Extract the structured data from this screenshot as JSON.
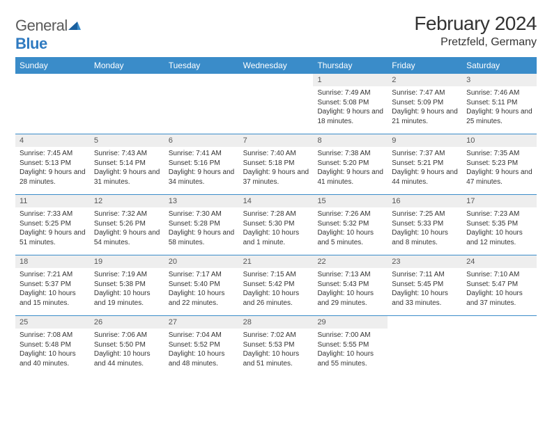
{
  "brand": {
    "part1": "General",
    "part2": "Blue"
  },
  "title": "February 2024",
  "location": "Pretzfeld, Germany",
  "colors": {
    "header_bg": "#3a8cc9",
    "header_text": "#ffffff",
    "daynum_bg": "#eeeeee",
    "border": "#3a8cc9",
    "text": "#333333",
    "logo_gray": "#5a5a5a",
    "logo_blue": "#2f7ac0"
  },
  "day_names": [
    "Sunday",
    "Monday",
    "Tuesday",
    "Wednesday",
    "Thursday",
    "Friday",
    "Saturday"
  ],
  "weeks": [
    [
      {
        "n": "",
        "sr": "",
        "ss": "",
        "dl": ""
      },
      {
        "n": "",
        "sr": "",
        "ss": "",
        "dl": ""
      },
      {
        "n": "",
        "sr": "",
        "ss": "",
        "dl": ""
      },
      {
        "n": "",
        "sr": "",
        "ss": "",
        "dl": ""
      },
      {
        "n": "1",
        "sr": "Sunrise: 7:49 AM",
        "ss": "Sunset: 5:08 PM",
        "dl": "Daylight: 9 hours and 18 minutes."
      },
      {
        "n": "2",
        "sr": "Sunrise: 7:47 AM",
        "ss": "Sunset: 5:09 PM",
        "dl": "Daylight: 9 hours and 21 minutes."
      },
      {
        "n": "3",
        "sr": "Sunrise: 7:46 AM",
        "ss": "Sunset: 5:11 PM",
        "dl": "Daylight: 9 hours and 25 minutes."
      }
    ],
    [
      {
        "n": "4",
        "sr": "Sunrise: 7:45 AM",
        "ss": "Sunset: 5:13 PM",
        "dl": "Daylight: 9 hours and 28 minutes."
      },
      {
        "n": "5",
        "sr": "Sunrise: 7:43 AM",
        "ss": "Sunset: 5:14 PM",
        "dl": "Daylight: 9 hours and 31 minutes."
      },
      {
        "n": "6",
        "sr": "Sunrise: 7:41 AM",
        "ss": "Sunset: 5:16 PM",
        "dl": "Daylight: 9 hours and 34 minutes."
      },
      {
        "n": "7",
        "sr": "Sunrise: 7:40 AM",
        "ss": "Sunset: 5:18 PM",
        "dl": "Daylight: 9 hours and 37 minutes."
      },
      {
        "n": "8",
        "sr": "Sunrise: 7:38 AM",
        "ss": "Sunset: 5:20 PM",
        "dl": "Daylight: 9 hours and 41 minutes."
      },
      {
        "n": "9",
        "sr": "Sunrise: 7:37 AM",
        "ss": "Sunset: 5:21 PM",
        "dl": "Daylight: 9 hours and 44 minutes."
      },
      {
        "n": "10",
        "sr": "Sunrise: 7:35 AM",
        "ss": "Sunset: 5:23 PM",
        "dl": "Daylight: 9 hours and 47 minutes."
      }
    ],
    [
      {
        "n": "11",
        "sr": "Sunrise: 7:33 AM",
        "ss": "Sunset: 5:25 PM",
        "dl": "Daylight: 9 hours and 51 minutes."
      },
      {
        "n": "12",
        "sr": "Sunrise: 7:32 AM",
        "ss": "Sunset: 5:26 PM",
        "dl": "Daylight: 9 hours and 54 minutes."
      },
      {
        "n": "13",
        "sr": "Sunrise: 7:30 AM",
        "ss": "Sunset: 5:28 PM",
        "dl": "Daylight: 9 hours and 58 minutes."
      },
      {
        "n": "14",
        "sr": "Sunrise: 7:28 AM",
        "ss": "Sunset: 5:30 PM",
        "dl": "Daylight: 10 hours and 1 minute."
      },
      {
        "n": "15",
        "sr": "Sunrise: 7:26 AM",
        "ss": "Sunset: 5:32 PM",
        "dl": "Daylight: 10 hours and 5 minutes."
      },
      {
        "n": "16",
        "sr": "Sunrise: 7:25 AM",
        "ss": "Sunset: 5:33 PM",
        "dl": "Daylight: 10 hours and 8 minutes."
      },
      {
        "n": "17",
        "sr": "Sunrise: 7:23 AM",
        "ss": "Sunset: 5:35 PM",
        "dl": "Daylight: 10 hours and 12 minutes."
      }
    ],
    [
      {
        "n": "18",
        "sr": "Sunrise: 7:21 AM",
        "ss": "Sunset: 5:37 PM",
        "dl": "Daylight: 10 hours and 15 minutes."
      },
      {
        "n": "19",
        "sr": "Sunrise: 7:19 AM",
        "ss": "Sunset: 5:38 PM",
        "dl": "Daylight: 10 hours and 19 minutes."
      },
      {
        "n": "20",
        "sr": "Sunrise: 7:17 AM",
        "ss": "Sunset: 5:40 PM",
        "dl": "Daylight: 10 hours and 22 minutes."
      },
      {
        "n": "21",
        "sr": "Sunrise: 7:15 AM",
        "ss": "Sunset: 5:42 PM",
        "dl": "Daylight: 10 hours and 26 minutes."
      },
      {
        "n": "22",
        "sr": "Sunrise: 7:13 AM",
        "ss": "Sunset: 5:43 PM",
        "dl": "Daylight: 10 hours and 29 minutes."
      },
      {
        "n": "23",
        "sr": "Sunrise: 7:11 AM",
        "ss": "Sunset: 5:45 PM",
        "dl": "Daylight: 10 hours and 33 minutes."
      },
      {
        "n": "24",
        "sr": "Sunrise: 7:10 AM",
        "ss": "Sunset: 5:47 PM",
        "dl": "Daylight: 10 hours and 37 minutes."
      }
    ],
    [
      {
        "n": "25",
        "sr": "Sunrise: 7:08 AM",
        "ss": "Sunset: 5:48 PM",
        "dl": "Daylight: 10 hours and 40 minutes."
      },
      {
        "n": "26",
        "sr": "Sunrise: 7:06 AM",
        "ss": "Sunset: 5:50 PM",
        "dl": "Daylight: 10 hours and 44 minutes."
      },
      {
        "n": "27",
        "sr": "Sunrise: 7:04 AM",
        "ss": "Sunset: 5:52 PM",
        "dl": "Daylight: 10 hours and 48 minutes."
      },
      {
        "n": "28",
        "sr": "Sunrise: 7:02 AM",
        "ss": "Sunset: 5:53 PM",
        "dl": "Daylight: 10 hours and 51 minutes."
      },
      {
        "n": "29",
        "sr": "Sunrise: 7:00 AM",
        "ss": "Sunset: 5:55 PM",
        "dl": "Daylight: 10 hours and 55 minutes."
      },
      {
        "n": "",
        "sr": "",
        "ss": "",
        "dl": ""
      },
      {
        "n": "",
        "sr": "",
        "ss": "",
        "dl": ""
      }
    ]
  ]
}
